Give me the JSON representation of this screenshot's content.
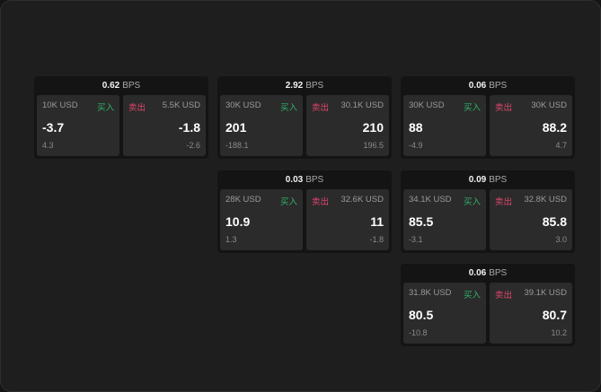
{
  "unit": "BPS",
  "buy_label": "买入",
  "sell_label": "卖出",
  "cards": [
    {
      "spread": "0.62",
      "bid": {
        "size": "10K USD",
        "price": "-3.7",
        "change": "4.3"
      },
      "ask": {
        "size": "5.5K USD",
        "price": "-1.8",
        "change": "-2.6"
      }
    },
    {
      "spread": "2.92",
      "bid": {
        "size": "30K USD",
        "price": "201",
        "change": "-188.1"
      },
      "ask": {
        "size": "30.1K USD",
        "price": "210",
        "change": "196.5"
      }
    },
    {
      "spread": "0.06",
      "bid": {
        "size": "30K USD",
        "price": "88",
        "change": "-4.9"
      },
      "ask": {
        "size": "30K USD",
        "price": "88.2",
        "change": "4.7"
      }
    },
    {
      "spread": "0.03",
      "bid": {
        "size": "28K USD",
        "price": "10.9",
        "change": "1.3"
      },
      "ask": {
        "size": "32.6K USD",
        "price": "11",
        "change": "-1.8"
      }
    },
    {
      "spread": "0.09",
      "bid": {
        "size": "34.1K USD",
        "price": "85.5",
        "change": "-3.1"
      },
      "ask": {
        "size": "32.8K USD",
        "price": "85.8",
        "change": "3.0"
      }
    },
    {
      "spread": "0.06",
      "bid": {
        "size": "31.8K USD",
        "price": "80.5",
        "change": "-10.8"
      },
      "ask": {
        "size": "39.1K USD",
        "price": "80.7",
        "change": "10.2"
      }
    }
  ],
  "colors": {
    "buy": "#2fb36a",
    "sell": "#e0466e"
  }
}
